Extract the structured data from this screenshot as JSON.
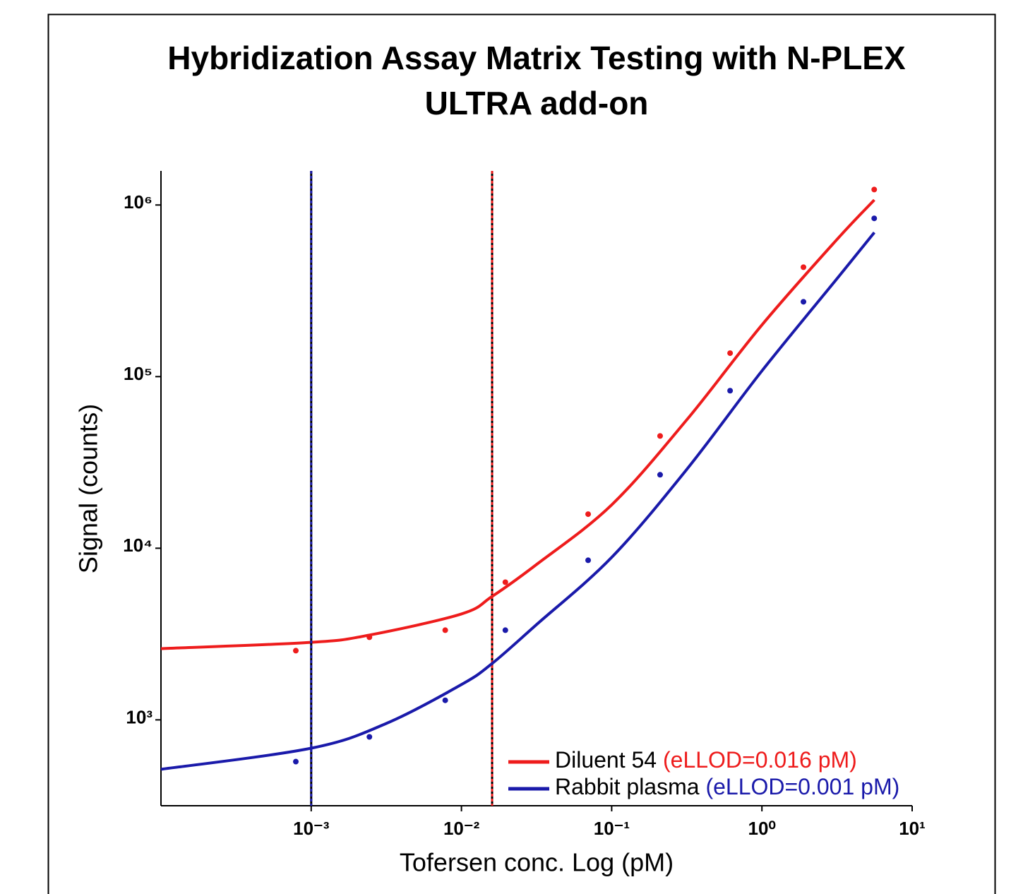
{
  "chart_data": {
    "type": "scatter",
    "title": [
      "Hybridization Assay Matrix Testing with N-PLEX",
      "ULTRA add-on"
    ],
    "xlabel": "Tofersen conc. Log (pM)",
    "ylabel": "Signal (counts)",
    "xscale": "log",
    "yscale": "log",
    "xlim": [
      0.0001,
      10
    ],
    "ylim": [
      316,
      1580000
    ],
    "xticks": [
      {
        "value": 0.001,
        "label": "10⁻³"
      },
      {
        "value": 0.01,
        "label": "10⁻²"
      },
      {
        "value": 0.1,
        "label": "10⁻¹"
      },
      {
        "value": 1,
        "label": "10⁰"
      },
      {
        "value": 10,
        "label": "10¹"
      }
    ],
    "yticks": [
      {
        "value": 1000,
        "label": "10³"
      },
      {
        "value": 10000,
        "label": "10⁴"
      },
      {
        "value": 100000,
        "label": "10⁵"
      },
      {
        "value": 1000000,
        "label": "10⁶"
      }
    ],
    "legend": "lower right",
    "series": [
      {
        "name": "Diluent 54",
        "annotation": "(eLLOD=0.016 pM)",
        "color": "#ee1c1c",
        "eLLOD": 0.016,
        "x": [
          0.00079,
          0.00244,
          0.0078,
          0.0196,
          0.0697,
          0.21,
          0.614,
          1.89,
          5.59
        ],
        "values": [
          2530,
          3030,
          3330,
          6340,
          15800,
          45100,
          137000,
          434000,
          1230000
        ],
        "fit_x": [
          0.0001,
          0.001,
          0.00244,
          0.01,
          0.016,
          0.0316,
          0.1,
          0.316,
          1,
          3.16,
          5.6
        ],
        "fit_values": [
          2600,
          2830,
          3120,
          4140,
          5240,
          8040,
          17900,
          56000,
          200000,
          630000,
          1070000
        ]
      },
      {
        "name": "Rabbit plasma",
        "annotation": "(eLLOD=0.001 pM)",
        "color": "#1a1aaa",
        "eLLOD": 0.001,
        "x": [
          0.00079,
          0.00244,
          0.0078,
          0.0196,
          0.0697,
          0.21,
          0.614,
          1.89,
          5.59
        ],
        "values": [
          571,
          796,
          1300,
          3330,
          8510,
          26800,
          82800,
          273000,
          836000
        ],
        "fit_x": [
          0.0001,
          0.001,
          0.00316,
          0.01,
          0.016,
          0.0316,
          0.1,
          0.316,
          1,
          3.16,
          5.6
        ],
        "fit_values": [
          515,
          684,
          953,
          1606,
          2130,
          3590,
          8850,
          28800,
          108000,
          372000,
          691000
        ]
      }
    ]
  }
}
